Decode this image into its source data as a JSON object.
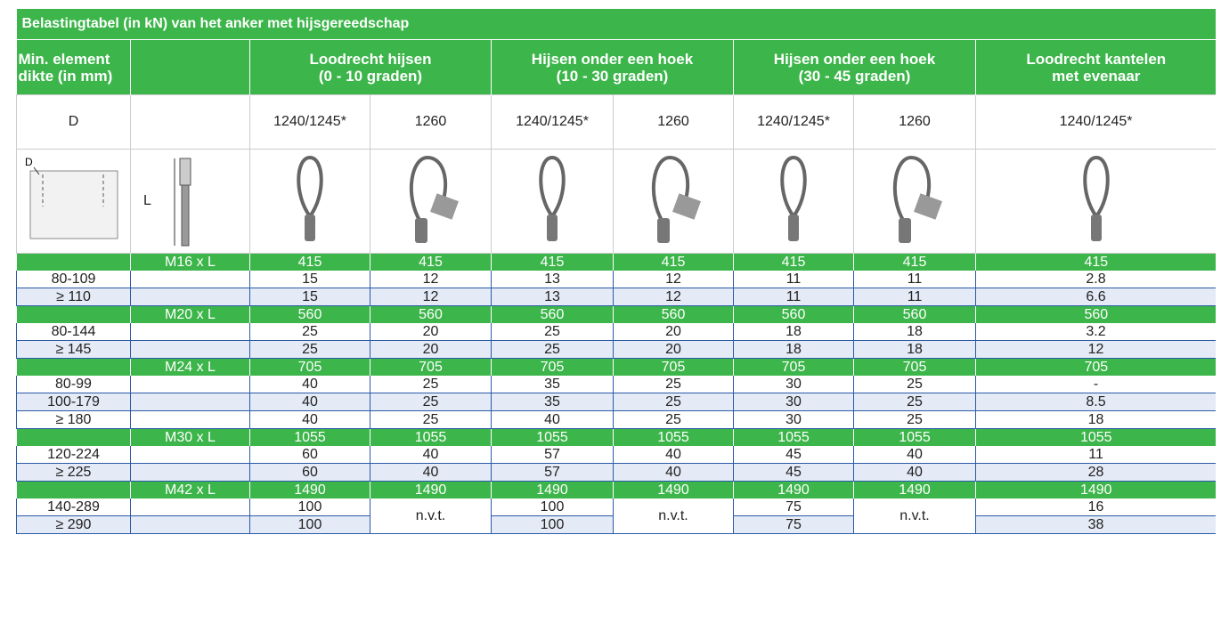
{
  "title": "Belastingtabel (in kN) van het anker met hijsgereedschap",
  "header": {
    "thickness": [
      "Min. element",
      "dikte (in mm)"
    ],
    "groups": [
      {
        "label": [
          "Loodrecht hijsen",
          "(0 - 10 graden)"
        ],
        "models": [
          "1240/1245*",
          "1260"
        ]
      },
      {
        "label": [
          "Hijsen onder een hoek",
          "(10 - 30 graden)"
        ],
        "models": [
          "1240/1245*",
          "1260"
        ]
      },
      {
        "label": [
          "Hijsen onder een hoek",
          "(30 - 45 graden)"
        ],
        "models": [
          "1240/1245*",
          "1260"
        ]
      },
      {
        "label": [
          "Loodrecht kantelen",
          "met evenaar"
        ],
        "models": [
          "1240/1245*"
        ]
      }
    ],
    "subheader": "D"
  },
  "image_row": {
    "block_label": "D",
    "length_label": "L"
  },
  "sections": [
    {
      "size": "M16 x L",
      "capacity": [
        415,
        415,
        415,
        415,
        415,
        415,
        415
      ],
      "rows": [
        {
          "thickness": "80-109",
          "values": [
            15,
            12,
            13,
            12,
            11,
            11,
            2.8
          ]
        },
        {
          "thickness": "≥ 110",
          "values": [
            15,
            12,
            13,
            12,
            11,
            11,
            6.6
          ]
        }
      ]
    },
    {
      "size": "M20 x L",
      "capacity": [
        560,
        560,
        560,
        560,
        560,
        560,
        560
      ],
      "rows": [
        {
          "thickness": "80-144",
          "values": [
            25,
            20,
            25,
            20,
            18,
            18,
            3.2
          ]
        },
        {
          "thickness": "≥ 145",
          "values": [
            25,
            20,
            25,
            20,
            18,
            18,
            12
          ]
        }
      ]
    },
    {
      "size": "M24 x L",
      "capacity": [
        705,
        705,
        705,
        705,
        705,
        705,
        705
      ],
      "rows": [
        {
          "thickness": "80-99",
          "values": [
            40,
            25,
            35,
            25,
            30,
            25,
            "-"
          ]
        },
        {
          "thickness": "100-179",
          "values": [
            40,
            25,
            35,
            25,
            30,
            25,
            8.5
          ]
        },
        {
          "thickness": "≥ 180",
          "values": [
            40,
            25,
            40,
            25,
            30,
            25,
            18
          ]
        }
      ]
    },
    {
      "size": "M30 x L",
      "capacity": [
        1055,
        1055,
        1055,
        1055,
        1055,
        1055,
        1055
      ],
      "rows": [
        {
          "thickness": "120-224",
          "values": [
            60,
            40,
            57,
            40,
            45,
            40,
            11
          ]
        },
        {
          "thickness": "≥ 225",
          "values": [
            60,
            40,
            57,
            40,
            45,
            40,
            28
          ]
        }
      ]
    },
    {
      "size": "M42 x L",
      "capacity": [
        1490,
        1490,
        1490,
        1490,
        1490,
        1490,
        1490
      ],
      "rows": [
        {
          "thickness": "140-289",
          "values": [
            100,
            "n.v.t.",
            100,
            "n.v.t.",
            75,
            "n.v.t.",
            16
          ]
        },
        {
          "thickness": "≥ 290",
          "values": [
            100,
            null,
            100,
            null,
            75,
            null,
            38
          ]
        }
      ]
    }
  ]
}
